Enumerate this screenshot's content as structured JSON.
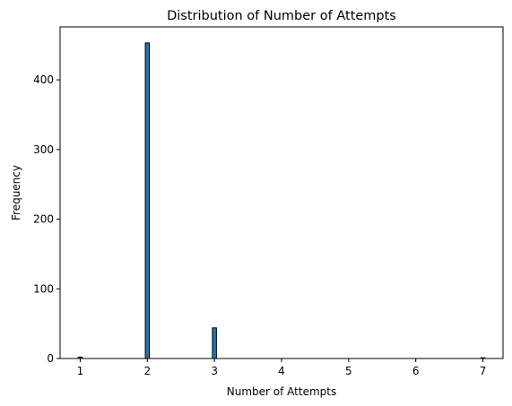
{
  "chart_data": {
    "type": "bar",
    "title": "Distribution of Number of Attempts",
    "xlabel": "Number of Attempts",
    "ylabel": "Frequency",
    "xlim": [
      0.7,
      7.3
    ],
    "ylim": [
      0,
      476
    ],
    "xticks": [
      1,
      2,
      3,
      4,
      5,
      6,
      7
    ],
    "yticks": [
      0,
      100,
      200,
      300,
      400
    ],
    "bar_width": 0.06,
    "bar_color": "#1f77b4",
    "edge_color": "#000000",
    "grid": false,
    "bars": [
      {
        "x": 1,
        "value": 2
      },
      {
        "x": 2,
        "value": 453
      },
      {
        "x": 3,
        "value": 44
      },
      {
        "x": 7,
        "value": 1
      }
    ]
  }
}
